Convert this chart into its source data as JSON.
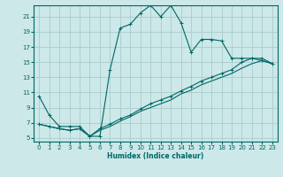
{
  "xlabel": "Humidex (Indice chaleur)",
  "bg_color": "#cce8e8",
  "grid_color": "#aacccc",
  "line_color": "#006666",
  "xlim": [
    -0.5,
    23.5
  ],
  "ylim": [
    4.5,
    22.5
  ],
  "xticks": [
    0,
    1,
    2,
    3,
    4,
    5,
    6,
    7,
    8,
    9,
    10,
    11,
    12,
    13,
    14,
    15,
    16,
    17,
    18,
    19,
    20,
    21,
    22,
    23
  ],
  "yticks": [
    5,
    7,
    9,
    11,
    13,
    15,
    17,
    19,
    21
  ],
  "line1": {
    "x": [
      0,
      1,
      2,
      3,
      4,
      5,
      6,
      7,
      8,
      9,
      10,
      11,
      12,
      13,
      14,
      15,
      16,
      17,
      18,
      19,
      20,
      21,
      22,
      23
    ],
    "y": [
      10.5,
      8.0,
      6.5,
      6.5,
      6.5,
      5.2,
      5.2,
      14.0,
      19.5,
      20.0,
      21.5,
      22.5,
      21.0,
      22.5,
      20.2,
      16.3,
      18.0,
      18.0,
      17.8,
      15.5,
      15.5,
      15.5,
      15.2,
      14.8
    ],
    "marker": true
  },
  "line2": {
    "x": [
      0,
      1,
      2,
      3,
      4,
      5,
      6,
      7,
      8,
      9,
      10,
      11,
      12,
      13,
      14,
      15,
      16,
      17,
      18,
      19,
      20,
      21,
      22,
      23
    ],
    "y": [
      6.8,
      6.5,
      6.2,
      6.0,
      6.2,
      5.2,
      6.2,
      6.8,
      7.5,
      8.0,
      8.8,
      9.5,
      10.0,
      10.5,
      11.2,
      11.8,
      12.5,
      13.0,
      13.5,
      14.0,
      15.0,
      15.5,
      15.5,
      14.8
    ],
    "marker": true
  },
  "line3": {
    "x": [
      0,
      1,
      2,
      3,
      4,
      5,
      6,
      7,
      8,
      9,
      10,
      11,
      12,
      13,
      14,
      15,
      16,
      17,
      18,
      19,
      20,
      21,
      22,
      23
    ],
    "y": [
      6.8,
      6.5,
      6.2,
      6.0,
      6.2,
      5.2,
      6.0,
      6.5,
      7.2,
      7.8,
      8.5,
      9.0,
      9.5,
      10.0,
      10.8,
      11.3,
      12.0,
      12.5,
      13.0,
      13.5,
      14.2,
      14.8,
      15.2,
      14.8
    ],
    "marker": false
  }
}
